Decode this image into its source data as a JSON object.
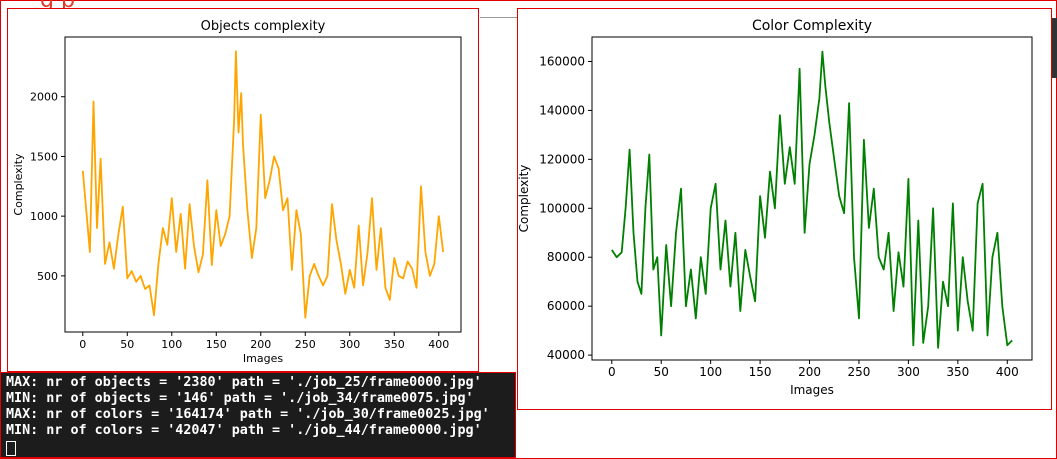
{
  "header": {
    "title_fragment": "g p"
  },
  "terminal": {
    "cut_line": "...",
    "lines": [
      "MAX: nr of objects = '2380' path = './job_25/frame0000.jpg'",
      "MIN: nr of objects = '146' path = './job_34/frame0075.jpg'",
      "MAX: nr of colors = '164174' path = './job_30/frame0025.jpg'",
      "MIN: nr of colors = '42047' path = './job_44/frame0000.jpg'"
    ]
  },
  "chart_data": [
    {
      "type": "line",
      "title": "Objects complexity",
      "xlabel": "Images",
      "ylabel": "Complexity",
      "color": "#ffa500",
      "xlim": [
        -20,
        425
      ],
      "ylim": [
        30,
        2500
      ],
      "xticks": [
        0,
        50,
        100,
        150,
        200,
        250,
        300,
        350,
        400
      ],
      "yticks": [
        500,
        1000,
        1500,
        2000
      ],
      "x": [
        0,
        8,
        12,
        16,
        20,
        25,
        30,
        35,
        40,
        45,
        50,
        55,
        60,
        65,
        70,
        75,
        80,
        85,
        90,
        95,
        100,
        105,
        110,
        115,
        120,
        125,
        130,
        135,
        140,
        145,
        150,
        155,
        160,
        165,
        170,
        172,
        175,
        178,
        180,
        185,
        190,
        195,
        200,
        205,
        210,
        215,
        220,
        225,
        230,
        235,
        240,
        245,
        250,
        255,
        260,
        265,
        270,
        275,
        280,
        285,
        290,
        295,
        300,
        305,
        310,
        315,
        320,
        325,
        330,
        335,
        340,
        345,
        350,
        355,
        360,
        365,
        370,
        375,
        380,
        385,
        390,
        395,
        400,
        405
      ],
      "values": [
        1380,
        700,
        1960,
        900,
        1480,
        600,
        780,
        560,
        850,
        1080,
        480,
        540,
        450,
        500,
        390,
        420,
        170,
        600,
        900,
        760,
        1150,
        700,
        1020,
        560,
        1100,
        750,
        530,
        680,
        1300,
        590,
        1050,
        750,
        850,
        1000,
        1800,
        2380,
        1700,
        2030,
        1600,
        1050,
        650,
        900,
        1850,
        1150,
        1300,
        1500,
        1400,
        1050,
        1150,
        550,
        1050,
        850,
        150,
        500,
        600,
        500,
        420,
        500,
        1100,
        800,
        600,
        350,
        550,
        400,
        920,
        420,
        700,
        1150,
        550,
        900,
        400,
        300,
        650,
        500,
        480,
        620,
        560,
        400,
        1250,
        700,
        500,
        600,
        1000,
        700
      ]
    },
    {
      "type": "line",
      "title": "Color Complexity",
      "xlabel": "Images",
      "ylabel": "Complexity",
      "color": "#008000",
      "xlim": [
        -20,
        425
      ],
      "ylim": [
        38000,
        170000
      ],
      "xticks": [
        0,
        50,
        100,
        150,
        200,
        250,
        300,
        350,
        400
      ],
      "yticks": [
        40000,
        60000,
        80000,
        100000,
        120000,
        140000,
        160000
      ],
      "x": [
        0,
        5,
        10,
        14,
        18,
        22,
        26,
        30,
        34,
        38,
        42,
        46,
        50,
        55,
        60,
        65,
        70,
        75,
        80,
        85,
        90,
        95,
        100,
        105,
        110,
        115,
        120,
        125,
        130,
        135,
        140,
        145,
        150,
        155,
        160,
        165,
        170,
        175,
        180,
        185,
        190,
        195,
        200,
        205,
        210,
        213,
        216,
        220,
        225,
        230,
        235,
        240,
        245,
        250,
        255,
        260,
        265,
        270,
        275,
        280,
        285,
        290,
        295,
        300,
        305,
        310,
        315,
        320,
        325,
        330,
        335,
        340,
        345,
        350,
        355,
        360,
        365,
        370,
        375,
        380,
        385,
        390,
        395,
        400,
        405
      ],
      "values": [
        83000,
        80000,
        82000,
        100000,
        124000,
        90000,
        70000,
        65000,
        100000,
        122000,
        75000,
        80000,
        48000,
        85000,
        60000,
        90000,
        108000,
        60000,
        75000,
        55000,
        80000,
        65000,
        100000,
        110000,
        75000,
        95000,
        68000,
        90000,
        58000,
        83000,
        72000,
        62000,
        105000,
        88000,
        115000,
        100000,
        138000,
        110000,
        125000,
        110000,
        157000,
        90000,
        118000,
        130000,
        145000,
        164000,
        150000,
        135000,
        120000,
        105000,
        98000,
        143000,
        80000,
        55000,
        128000,
        92000,
        108000,
        80000,
        75000,
        90000,
        58000,
        82000,
        68000,
        112000,
        44000,
        95000,
        45000,
        60000,
        100000,
        43000,
        70000,
        60000,
        102000,
        50000,
        80000,
        62000,
        50000,
        102000,
        110000,
        48000,
        80000,
        90000,
        60000,
        44000,
        46000
      ]
    }
  ]
}
